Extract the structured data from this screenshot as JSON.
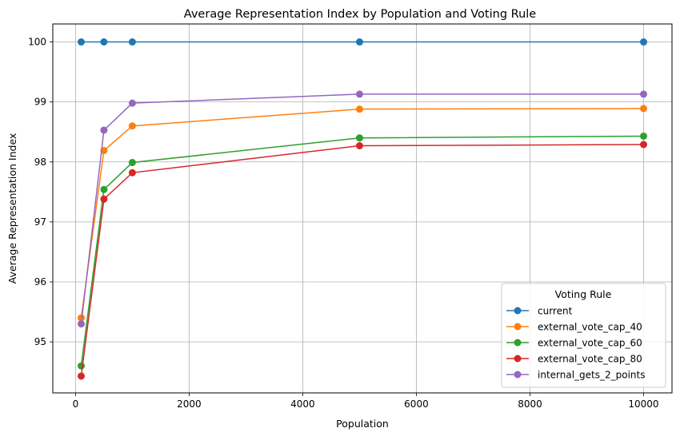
{
  "chart_data": {
    "type": "line",
    "title": "Average Representation Index by Population and Voting Rule",
    "xlabel": "Population",
    "ylabel": "Average Representation Index",
    "xlim": [
      -400,
      10500
    ],
    "ylim": [
      94.15,
      100.3
    ],
    "x_ticks": [
      0,
      2000,
      4000,
      6000,
      8000,
      10000
    ],
    "y_ticks": [
      95,
      96,
      97,
      98,
      99,
      100
    ],
    "x_tick_labels": [
      "0",
      "2000",
      "4000",
      "6000",
      "8000",
      "10000"
    ],
    "y_tick_labels": [
      "95",
      "96",
      "97",
      "98",
      "99",
      "100"
    ],
    "grid": true,
    "legend": {
      "title": "Voting Rule",
      "placement": "lower-right"
    },
    "x": [
      100,
      500,
      1000,
      5000,
      10000
    ],
    "series": [
      {
        "name": "current",
        "color": "#1f77b4",
        "values": [
          100.0,
          100.0,
          100.0,
          100.0,
          100.0
        ]
      },
      {
        "name": "external_vote_cap_40",
        "color": "#ff7f0e",
        "values": [
          95.4,
          98.19,
          98.6,
          98.88,
          98.89
        ]
      },
      {
        "name": "external_vote_cap_60",
        "color": "#2ca02c",
        "values": [
          94.6,
          97.54,
          97.99,
          98.4,
          98.43
        ]
      },
      {
        "name": "external_vote_cap_80",
        "color": "#d62728",
        "values": [
          94.43,
          97.38,
          97.82,
          98.27,
          98.29
        ]
      },
      {
        "name": "internal_gets_2_points",
        "color": "#9467bd",
        "values": [
          95.3,
          98.53,
          98.98,
          99.13,
          99.13
        ]
      }
    ]
  }
}
